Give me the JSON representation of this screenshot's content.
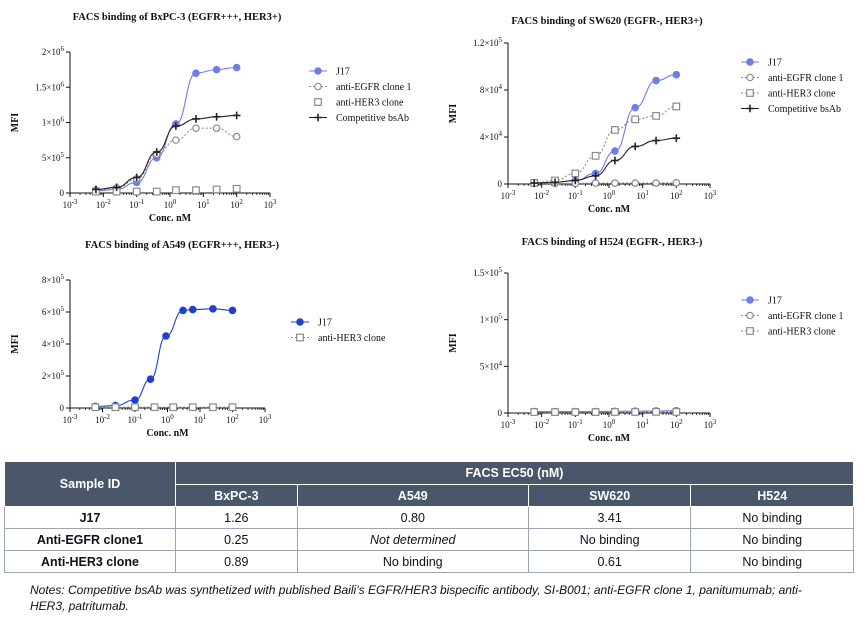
{
  "chart_data": [
    {
      "type": "scatter",
      "title": "FACS binding of BxPC-3 (EGFR+++, HER3+)",
      "xlabel": "Conc. nM",
      "ylabel": "MFI",
      "xscale": "log",
      "xlim": [
        0.001,
        1000
      ],
      "ylim": [
        0,
        2000000
      ],
      "xticks": [
        {
          "v": 0.001,
          "b": "10",
          "e": "-3"
        },
        {
          "v": 0.01,
          "b": "10",
          "e": "-2"
        },
        {
          "v": 0.1,
          "b": "10",
          "e": "-1"
        },
        {
          "v": 1,
          "b": "10",
          "e": "0"
        },
        {
          "v": 10,
          "b": "10",
          "e": "1"
        },
        {
          "v": 100,
          "b": "10",
          "e": "2"
        },
        {
          "v": 1000,
          "b": "10",
          "e": "3"
        }
      ],
      "yticks": [
        {
          "v": 0,
          "b": "0",
          "e": ""
        },
        {
          "v": 500000,
          "b": "5×10",
          "e": "5"
        },
        {
          "v": 1000000,
          "b": "1×10",
          "e": "6"
        },
        {
          "v": 1500000,
          "b": "1.5×10",
          "e": "6"
        },
        {
          "v": 2000000,
          "b": "2×10",
          "e": "6"
        }
      ],
      "legend_position": "right",
      "series": [
        {
          "name": "J17",
          "marker": "circle-filled",
          "color": "#6f7ee6",
          "line": "solid",
          "x": [
            0.006,
            0.025,
            0.1,
            0.4,
            1.5,
            6,
            25,
            100
          ],
          "y": [
            30000,
            50000,
            150000,
            500000,
            980000,
            1700000,
            1750000,
            1780000
          ]
        },
        {
          "name": "anti-EGFR clone 1",
          "marker": "circle-open",
          "color": "#8a8a8a",
          "line": "dotted",
          "x": [
            0.006,
            0.025,
            0.1,
            0.4,
            1.5,
            6,
            25,
            100
          ],
          "y": [
            40000,
            70000,
            200000,
            550000,
            750000,
            920000,
            920000,
            800000
          ]
        },
        {
          "name": "anti-HER3 clone",
          "marker": "square-open",
          "color": "#8a8a8a",
          "line": "none",
          "x": [
            0.006,
            0.025,
            0.1,
            0.4,
            1.5,
            6,
            25,
            100
          ],
          "y": [
            20000,
            20000,
            20000,
            20000,
            40000,
            40000,
            50000,
            60000
          ]
        },
        {
          "name": "Competitive bsAb",
          "marker": "plus",
          "color": "#222222",
          "line": "solid",
          "x": [
            0.006,
            0.025,
            0.1,
            0.4,
            1.5,
            6,
            25,
            100
          ],
          "y": [
            50000,
            80000,
            220000,
            580000,
            950000,
            1050000,
            1080000,
            1100000
          ]
        }
      ]
    },
    {
      "type": "scatter",
      "title": "FACS binding of SW620 (EGFR-, HER3+)",
      "xlabel": "Conc. nM",
      "ylabel": "MFI",
      "xscale": "log",
      "xlim": [
        0.001,
        1000
      ],
      "ylim": [
        0,
        120000
      ],
      "xticks": [
        {
          "v": 0.001,
          "b": "10",
          "e": "-3"
        },
        {
          "v": 0.01,
          "b": "10",
          "e": "-2"
        },
        {
          "v": 0.1,
          "b": "10",
          "e": "-1"
        },
        {
          "v": 1,
          "b": "10",
          "e": "0"
        },
        {
          "v": 10,
          "b": "10",
          "e": "1"
        },
        {
          "v": 100,
          "b": "10",
          "e": "2"
        },
        {
          "v": 1000,
          "b": "10",
          "e": "3"
        }
      ],
      "yticks": [
        {
          "v": 0,
          "b": "0",
          "e": ""
        },
        {
          "v": 40000,
          "b": "4×10",
          "e": "4"
        },
        {
          "v": 80000,
          "b": "8×10",
          "e": "4"
        },
        {
          "v": 120000,
          "b": "1.2×10",
          "e": "5"
        }
      ],
      "legend_position": "right",
      "series": [
        {
          "name": "J17",
          "marker": "circle-filled",
          "color": "#6f7ee6",
          "line": "solid",
          "x": [
            0.006,
            0.025,
            0.1,
            0.4,
            1.5,
            6,
            25,
            100
          ],
          "y": [
            1000,
            1500,
            3000,
            9000,
            28000,
            65000,
            88000,
            93000
          ]
        },
        {
          "name": "anti-EGFR clone 1",
          "marker": "circle-open",
          "color": "#8a8a8a",
          "line": "dotted",
          "x": [
            0.006,
            0.025,
            0.1,
            0.4,
            1.5,
            6,
            25,
            100
          ],
          "y": [
            500,
            500,
            500,
            800,
            800,
            800,
            800,
            1000
          ]
        },
        {
          "name": "anti-HER3 clone",
          "marker": "square-open",
          "color": "#8a8a8a",
          "line": "dotted",
          "x": [
            0.006,
            0.025,
            0.1,
            0.4,
            1.5,
            6,
            25,
            100
          ],
          "y": [
            1000,
            3000,
            9000,
            24000,
            46000,
            55000,
            58000,
            66000
          ]
        },
        {
          "name": "Competitive bsAb",
          "marker": "plus",
          "color": "#222222",
          "line": "solid",
          "x": [
            0.006,
            0.025,
            0.1,
            0.4,
            1.5,
            6,
            25,
            100
          ],
          "y": [
            800,
            1500,
            3000,
            7000,
            20000,
            32000,
            37000,
            39000
          ]
        }
      ]
    },
    {
      "type": "scatter",
      "title": "FACS binding of A549 (EGFR+++, HER3-)",
      "xlabel": "Conc. nM",
      "ylabel": "MFI",
      "xscale": "log",
      "xlim": [
        0.001,
        1000
      ],
      "ylim": [
        0,
        800000
      ],
      "xticks": [
        {
          "v": 0.001,
          "b": "10",
          "e": "-3"
        },
        {
          "v": 0.01,
          "b": "10",
          "e": "-2"
        },
        {
          "v": 0.1,
          "b": "10",
          "e": "-1"
        },
        {
          "v": 1,
          "b": "10",
          "e": "0"
        },
        {
          "v": 10,
          "b": "10",
          "e": "1"
        },
        {
          "v": 100,
          "b": "10",
          "e": "2"
        },
        {
          "v": 1000,
          "b": "10",
          "e": "3"
        }
      ],
      "yticks": [
        {
          "v": 0,
          "b": "0",
          "e": ""
        },
        {
          "v": 200000,
          "b": "2×10",
          "e": "5"
        },
        {
          "v": 400000,
          "b": "4×10",
          "e": "5"
        },
        {
          "v": 600000,
          "b": "6×10",
          "e": "5"
        },
        {
          "v": 800000,
          "b": "8×10",
          "e": "5"
        }
      ],
      "legend_position": "right",
      "series": [
        {
          "name": "J17",
          "marker": "circle-filled",
          "color": "#1f3fcf",
          "line": "solid",
          "x": [
            0.006,
            0.025,
            0.1,
            0.3,
            0.9,
            3,
            6,
            25,
            100
          ],
          "y": [
            10000,
            15000,
            50000,
            180000,
            450000,
            610000,
            615000,
            620000,
            610000
          ]
        },
        {
          "name": "anti-HER3 clone",
          "marker": "square-open",
          "color": "#8a8a8a",
          "line": "dotted",
          "x": [
            0.006,
            0.025,
            0.1,
            0.4,
            1.5,
            6,
            25,
            100
          ],
          "y": [
            5000,
            5000,
            5000,
            5000,
            5000,
            5000,
            5000,
            5000
          ]
        }
      ]
    },
    {
      "type": "scatter",
      "title": "FACS binding of H524 (EGFR-, HER3-)",
      "xlabel": "Conc. nM",
      "ylabel": "MFI",
      "xscale": "log",
      "xlim": [
        0.001,
        1000
      ],
      "ylim": [
        0,
        150000
      ],
      "xticks": [
        {
          "v": 0.001,
          "b": "10",
          "e": "-3"
        },
        {
          "v": 0.01,
          "b": "10",
          "e": "-2"
        },
        {
          "v": 0.1,
          "b": "10",
          "e": "-1"
        },
        {
          "v": 1,
          "b": "10",
          "e": "0"
        },
        {
          "v": 10,
          "b": "10",
          "e": "1"
        },
        {
          "v": 100,
          "b": "10",
          "e": "2"
        },
        {
          "v": 1000,
          "b": "10",
          "e": "3"
        }
      ],
      "yticks": [
        {
          "v": 0,
          "b": "0",
          "e": ""
        },
        {
          "v": 50000,
          "b": "5×10",
          "e": "4"
        },
        {
          "v": 100000,
          "b": "1×10",
          "e": "5"
        },
        {
          "v": 150000,
          "b": "1.5×10",
          "e": "5"
        }
      ],
      "legend_position": "right",
      "series": [
        {
          "name": "J17",
          "marker": "circle-filled",
          "color": "#6f7ee6",
          "line": "solid",
          "x": [
            0.006,
            0.025,
            0.1,
            0.4,
            1.5,
            6,
            25,
            100
          ],
          "y": [
            1500,
            1500,
            1500,
            1500,
            1800,
            2000,
            2200,
            2500
          ]
        },
        {
          "name": "anti-EGFR clone 1",
          "marker": "circle-open",
          "color": "#8a8a8a",
          "line": "dotted",
          "x": [
            0.006,
            0.025,
            0.1,
            0.4,
            1.5,
            6,
            25,
            100
          ],
          "y": [
            1200,
            1200,
            1200,
            1200,
            1300,
            1300,
            1400,
            1500
          ]
        },
        {
          "name": "anti-HER3 clone",
          "marker": "square-open",
          "color": "#8a8a8a",
          "line": "dotted",
          "x": [
            0.006,
            0.025,
            0.1,
            0.4,
            1.5,
            6,
            25,
            100
          ],
          "y": [
            1000,
            1000,
            1000,
            1000,
            1100,
            1100,
            1200,
            1200
          ]
        }
      ]
    }
  ],
  "table": {
    "sample_header": "Sample ID",
    "group_header": "FACS EC50 (nM)",
    "columns": [
      "BxPC-3",
      "A549",
      "SW620",
      "H524"
    ],
    "rows": [
      {
        "id": "J17",
        "cells": [
          "1.26",
          "0.80",
          "3.41",
          "No binding"
        ],
        "italic": [
          false,
          false,
          false,
          false
        ]
      },
      {
        "id": "Anti-EGFR clone1",
        "cells": [
          "0.25",
          "Not determined",
          "No binding",
          "No binding"
        ],
        "italic": [
          false,
          true,
          false,
          false
        ]
      },
      {
        "id": "Anti-HER3 clone",
        "cells": [
          "0.89",
          "No binding",
          "0.61",
          "No binding"
        ],
        "italic": [
          false,
          false,
          false,
          false
        ]
      }
    ]
  },
  "notes": "Notes: Competitive bsAb was synthetized with published Baili’s EGFR/HER3 bispecific antibody, SI-B001; anti-EGFR clone 1, panitumumab; anti-HER3, patritumab."
}
